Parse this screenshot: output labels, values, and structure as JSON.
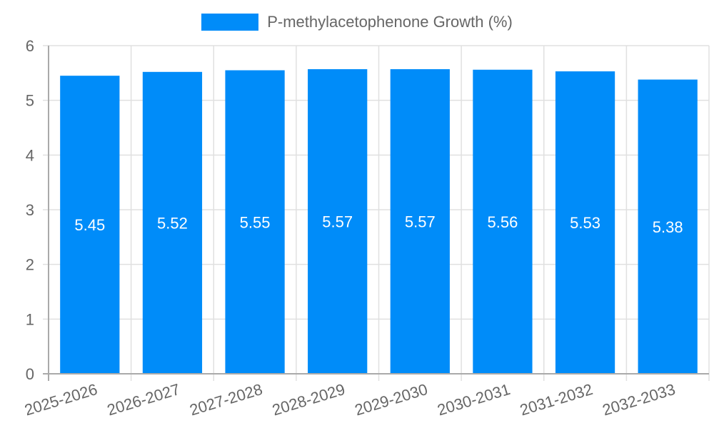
{
  "chart_data": {
    "type": "bar",
    "title": "",
    "xlabel": "",
    "ylabel": "",
    "ylim": [
      0,
      6
    ],
    "yticks": [
      0,
      1,
      2,
      3,
      4,
      5,
      6
    ],
    "grid": true,
    "legend_position": "top",
    "categories": [
      "2025-2026",
      "2026-2027",
      "2027-2028",
      "2028-2029",
      "2029-2030",
      "2030-2031",
      "2031-2032",
      "2032-2033"
    ],
    "series": [
      {
        "name": "P-methylacetophenone Growth (%)",
        "color": "#008cf9",
        "values": [
          5.45,
          5.52,
          5.55,
          5.57,
          5.57,
          5.56,
          5.53,
          5.38
        ]
      }
    ],
    "data_labels": [
      "5.45",
      "5.52",
      "5.55",
      "5.57",
      "5.57",
      "5.56",
      "5.53",
      "5.38"
    ]
  },
  "legend": {
    "label": "P-methylacetophenone Growth (%)",
    "color": "#008cf9"
  }
}
